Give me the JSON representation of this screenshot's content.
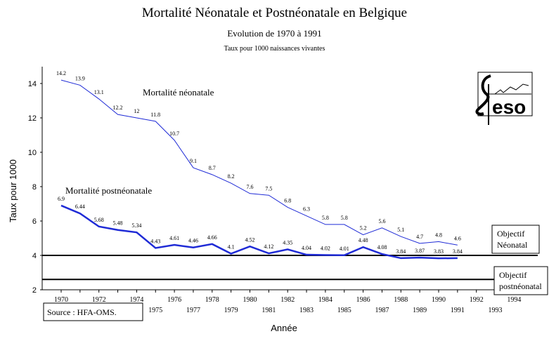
{
  "title": "Mortalité Néonatale et Postnéonatale en Belgique",
  "subtitle": "Evolution de 1970 à 1991",
  "subsubtitle": "Taux pour 1000 naissances vivantes",
  "source": "Source : HFA-OMS.",
  "objective_neonatal": [
    "Objectif",
    "Néonatal"
  ],
  "objective_postneonatal": [
    "Objectif",
    "postnéonatal"
  ],
  "logo_text": "eso",
  "colors": {
    "neonatal": "#1f2bd6",
    "postneonatal": "#1f2bd6",
    "objective": "#000000"
  },
  "chart_data": {
    "type": "line",
    "xlabel": "Année",
    "ylabel": "Taux pour 1000",
    "ylim": [
      2,
      15
    ],
    "xlim": [
      1970,
      1994
    ],
    "yticks": [
      2,
      4,
      6,
      8,
      10,
      12,
      14
    ],
    "xticks": [
      1970,
      1971,
      1972,
      1973,
      1974,
      1975,
      1976,
      1977,
      1978,
      1979,
      1980,
      1981,
      1982,
      1983,
      1984,
      1985,
      1986,
      1987,
      1988,
      1989,
      1990,
      1991,
      1992,
      1993,
      1994
    ],
    "x": [
      1970,
      1971,
      1972,
      1973,
      1974,
      1975,
      1976,
      1977,
      1978,
      1979,
      1980,
      1981,
      1982,
      1983,
      1984,
      1985,
      1986,
      1987,
      1988,
      1989,
      1990,
      1991
    ],
    "series": [
      {
        "name": "Mortalité néonatale",
        "values": [
          14.2,
          13.9,
          13.1,
          12.2,
          12,
          11.8,
          10.7,
          9.1,
          8.7,
          8.2,
          7.6,
          7.5,
          6.8,
          6.3,
          5.8,
          5.8,
          5.2,
          5.6,
          5.1,
          4.7,
          4.8,
          4.6
        ]
      },
      {
        "name": "Mortalité postnéonatale",
        "values": [
          6.9,
          6.44,
          5.68,
          5.48,
          5.34,
          4.43,
          4.61,
          4.46,
          4.66,
          4.1,
          4.52,
          4.12,
          4.35,
          4.04,
          4.02,
          4.01,
          4.48,
          4.08,
          3.84,
          3.87,
          3.83,
          3.84
        ]
      }
    ],
    "reference_lines": [
      {
        "name": "Objectif Néonatal",
        "value": 4
      },
      {
        "name": "Objectif postnéonatal",
        "value": 2.6
      }
    ],
    "grid": false,
    "legend": "none"
  }
}
